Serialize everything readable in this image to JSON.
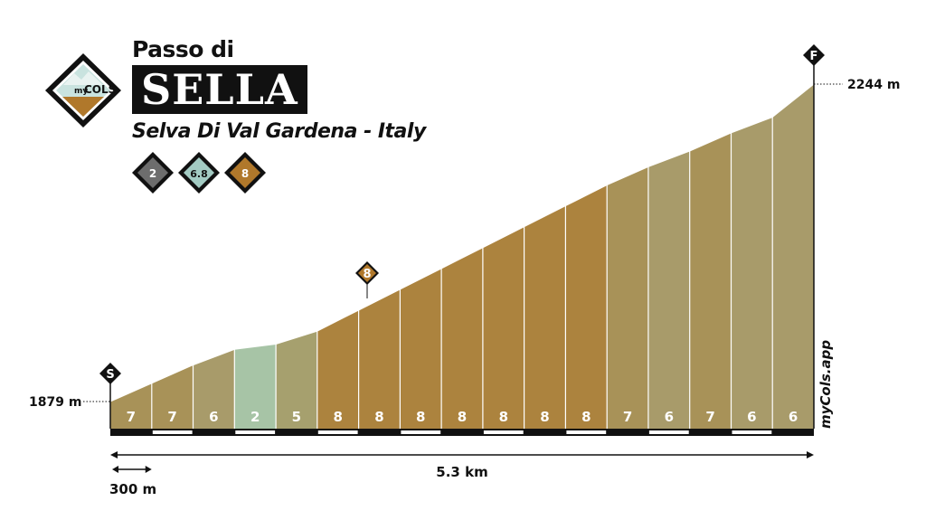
{
  "header": {
    "title_prefix": "Passo di",
    "title": "SELLA",
    "subtitle": "Selva Di Val Gardena - Italy",
    "logo": {
      "line1": "my",
      "line2": "COLS"
    },
    "difficulty_badges": [
      {
        "value": "2",
        "color": "#6d6d6d"
      },
      {
        "value": "6.8",
        "color": "#a3cbc3"
      },
      {
        "value": "8",
        "color": "#b0782b"
      }
    ]
  },
  "chart_data": {
    "type": "area",
    "distance_label": "5.3 km",
    "scale_label": "300 m",
    "watermark": "myCols.app",
    "start": {
      "marker": "S",
      "elevation": 1879,
      "label": "1879 m"
    },
    "finish": {
      "marker": "F",
      "elevation": 2244,
      "label": "2244 m"
    },
    "max_gradient_marker": "8",
    "segment_length_m": 300,
    "segments": [
      {
        "gradient": "7",
        "end_elevation": 1900
      },
      {
        "gradient": "7",
        "end_elevation": 1921
      },
      {
        "gradient": "6",
        "end_elevation": 1939
      },
      {
        "gradient": "2",
        "end_elevation": 1945
      },
      {
        "gradient": "5",
        "end_elevation": 1960
      },
      {
        "gradient": "8",
        "end_elevation": 1984
      },
      {
        "gradient": "8",
        "end_elevation": 2008
      },
      {
        "gradient": "8",
        "end_elevation": 2032
      },
      {
        "gradient": "8",
        "end_elevation": 2056
      },
      {
        "gradient": "8",
        "end_elevation": 2080
      },
      {
        "gradient": "8",
        "end_elevation": 2104
      },
      {
        "gradient": "8",
        "end_elevation": 2128
      },
      {
        "gradient": "7",
        "end_elevation": 2149
      },
      {
        "gradient": "6",
        "end_elevation": 2167
      },
      {
        "gradient": "7",
        "end_elevation": 2188
      },
      {
        "gradient": "6",
        "end_elevation": 2206
      },
      {
        "gradient": "6",
        "end_elevation": 2224
      }
    ],
    "grade_colors": {
      "2": "#a7c4a6",
      "5": "#a6a06e",
      "6": "#a89b6a",
      "7": "#a89258",
      "8": "#ac833e"
    }
  }
}
